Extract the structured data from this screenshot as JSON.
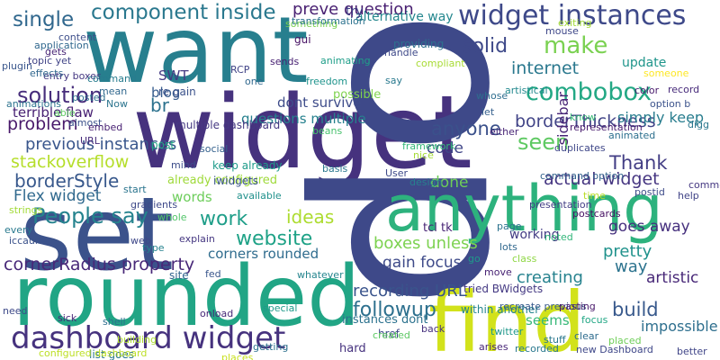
{
  "colors": {
    "background": "#ffffff",
    "palette": [
      "#440154",
      "#46327e",
      "#365c8d",
      "#277f8e",
      "#1fa187",
      "#4ac16d",
      "#a0da39",
      "#d2e21b"
    ]
  },
  "words": [
    {
      "text": "want",
      "color": "#277f8e"
    },
    {
      "text": "widget",
      "color": "#46327e"
    },
    {
      "text": "op",
      "color": "#3e4989"
    },
    {
      "text": "set",
      "color": "#3b528b"
    },
    {
      "text": "rounded",
      "color": "#21a585"
    },
    {
      "text": "anything",
      "color": "#2db27d"
    },
    {
      "text": "find",
      "color": "#d2e21b"
    },
    {
      "text": "widget instances",
      "color": "#3e4989"
    },
    {
      "text": "dashboard widget",
      "color": "#46327e"
    },
    {
      "text": "component inside",
      "color": "#2a788e"
    },
    {
      "text": "single",
      "color": "#31688e"
    },
    {
      "text": "make",
      "color": "#7ad151"
    },
    {
      "text": "solution",
      "color": "#472d7b"
    },
    {
      "text": "combobox",
      "color": "#22a884"
    },
    {
      "text": "problem",
      "color": "#48186a"
    },
    {
      "text": "internet",
      "color": "#2a788e"
    },
    {
      "text": "borderThickness",
      "color": "#414487"
    },
    {
      "text": "solid",
      "color": "#3e4989"
    },
    {
      "text": "seen",
      "color": "#5ec962"
    },
    {
      "text": "Thank",
      "color": "#433e85"
    },
    {
      "text": "actual widget",
      "color": "#453581"
    },
    {
      "text": "stackoverflow",
      "color": "#b5de2b"
    },
    {
      "text": "borderStyle",
      "color": "#38588c"
    },
    {
      "text": "Flex widget",
      "color": "#30698e"
    },
    {
      "text": "People say",
      "color": "#25838e"
    },
    {
      "text": "cornerRadius property",
      "color": "#482878"
    },
    {
      "text": "blog",
      "color": "#365c8d"
    },
    {
      "text": "SWT",
      "color": "#443a83"
    },
    {
      "text": "br",
      "color": "#2c728e"
    },
    {
      "text": "terrible flaw",
      "color": "#482173"
    },
    {
      "text": "previous instances",
      "color": "#39568c"
    },
    {
      "text": "re gain",
      "color": "#3b528b"
    },
    {
      "text": "already configured",
      "color": "#9fda3a"
    },
    {
      "text": "words",
      "color": "#6ccd5a"
    },
    {
      "text": "work",
      "color": "#1f9e89"
    },
    {
      "text": "website",
      "color": "#1fa287"
    },
    {
      "text": "ideas",
      "color": "#addc30"
    },
    {
      "text": "corners rounded",
      "color": "#2f6c8e"
    },
    {
      "text": "recording URL",
      "color": "#3a548c"
    },
    {
      "text": "followup",
      "color": "#2d708e"
    },
    {
      "text": "hard",
      "color": "#46327e"
    },
    {
      "text": "working",
      "color": "#433d84"
    },
    {
      "text": "creating",
      "color": "#26828e"
    },
    {
      "text": "build",
      "color": "#38598c"
    },
    {
      "text": "impossible",
      "color": "#2e6f8e"
    },
    {
      "text": "pretty",
      "color": "#20928c"
    },
    {
      "text": "seems",
      "color": "#37b878"
    },
    {
      "text": "anyone",
      "color": "#3b518b"
    },
    {
      "text": "code",
      "color": "#404688"
    },
    {
      "text": "done",
      "color": "#6ece58"
    },
    {
      "text": "goes away",
      "color": "#46307e"
    },
    {
      "text": "way",
      "color": "#2c738e"
    },
    {
      "text": "artistic",
      "color": "#482878"
    },
    {
      "text": "update",
      "color": "#1f958b"
    },
    {
      "text": "simply keep",
      "color": "#287d8e"
    },
    {
      "text": "sidebar",
      "color": "#482576"
    },
    {
      "text": "possible",
      "color": "#7fd34e"
    },
    {
      "text": "dont survive",
      "color": "#3e4c8a"
    },
    {
      "text": "questions multiple",
      "color": "#26818e"
    },
    {
      "text": "multiple dashboard",
      "color": "#453882"
    },
    {
      "text": "post",
      "color": "#22a785"
    },
    {
      "text": "site",
      "color": "#32658e"
    },
    {
      "text": "iwidgets",
      "color": "#3a538b"
    },
    {
      "text": "keep already",
      "color": "#1e9b8a"
    },
    {
      "text": "list goes",
      "color": "#2a768e"
    },
    {
      "text": "configured dashboard",
      "color": "#bddf26"
    },
    {
      "text": "preve question",
      "color": "#481f71"
    },
    {
      "text": "alternative way",
      "color": "#24878e"
    },
    {
      "text": "gui",
      "color": "#471164"
    },
    {
      "text": "try",
      "color": "#414287"
    },
    {
      "text": "application",
      "color": "#31688e"
    },
    {
      "text": "topic yet",
      "color": "#414487"
    },
    {
      "text": "entry boxes",
      "color": "#453882"
    },
    {
      "text": "href",
      "color": "#3f4788"
    },
    {
      "text": "instances dont",
      "color": "#2c728e"
    },
    {
      "text": "tcl tk",
      "color": "#482475"
    },
    {
      "text": "boxes unless",
      "color": "#7cd250"
    },
    {
      "text": "gain focus",
      "color": "#3e4a89"
    },
    {
      "text": "tried BWidgets",
      "color": "#443983"
    },
    {
      "text": "within another",
      "color": "#25858e"
    },
    {
      "text": "recreate previous",
      "color": "#38598c"
    },
    {
      "text": "new Dashboard",
      "color": "#3f4889"
    },
    {
      "text": "command option",
      "color": "#33638d"
    },
    {
      "text": "color",
      "color": "#481a6c"
    },
    {
      "text": "someone",
      "color": "#fde725"
    },
    {
      "text": "exiting",
      "color": "#a2da37"
    },
    {
      "text": "mouse",
      "color": "#3f4889"
    },
    {
      "text": "animated",
      "color": "#2d708e"
    },
    {
      "text": "option b",
      "color": "#3b528b"
    },
    {
      "text": "record",
      "color": "#472a7a"
    },
    {
      "text": "say",
      "color": "#29798e"
    },
    {
      "text": "compliant",
      "color": "#a8db34"
    },
    {
      "text": "handle",
      "color": "#3e4989"
    },
    {
      "text": "providing",
      "color": "#2d708e"
    },
    {
      "text": "something",
      "color": "#7ad151"
    },
    {
      "text": "RCP",
      "color": "#414487"
    },
    {
      "text": "sends",
      "color": "#482173"
    },
    {
      "text": "one",
      "color": "#31688e"
    },
    {
      "text": "animating",
      "color": "#1f9e89"
    },
    {
      "text": "freedom",
      "color": "#1f948c"
    },
    {
      "text": "transformation",
      "color": "#2c728e"
    },
    {
      "text": "beans",
      "color": "#48c16e"
    },
    {
      "text": "basis",
      "color": "#2a778e"
    },
    {
      "text": "social",
      "color": "#34618d"
    },
    {
      "text": "mind",
      "color": "#3d4d8a"
    },
    {
      "text": "available",
      "color": "#21918c"
    },
    {
      "text": "whole",
      "color": "#52c569"
    },
    {
      "text": "explain",
      "color": "#453781"
    },
    {
      "text": "fed",
      "color": "#39568c"
    },
    {
      "text": "whatever",
      "color": "#25858e"
    },
    {
      "text": "onload",
      "color": "#482979"
    },
    {
      "text": "getting",
      "color": "#2d718e"
    },
    {
      "text": "places",
      "color": "#c8e020"
    },
    {
      "text": "special",
      "color": "#1f9a8a"
    },
    {
      "text": "created",
      "color": "#5cc863"
    },
    {
      "text": "framework",
      "color": "#35b779"
    },
    {
      "text": "nice",
      "color": "#a5db36"
    },
    {
      "text": "User",
      "color": "#3e4a89"
    },
    {
      "text": "design",
      "color": "#27808e"
    },
    {
      "text": "either",
      "color": "#482576"
    },
    {
      "text": "let",
      "color": "#35608d"
    },
    {
      "text": "whose",
      "color": "#2e6e8e"
    },
    {
      "text": "artistical",
      "color": "#23898e"
    },
    {
      "text": "know",
      "color": "#3aba76"
    },
    {
      "text": "representation",
      "color": "#481c6e"
    },
    {
      "text": "duplicates",
      "color": "#3f4788"
    },
    {
      "text": "postid",
      "color": "#3e4c8a"
    },
    {
      "text": "help",
      "color": "#414487"
    },
    {
      "text": "common",
      "color": "#453882"
    },
    {
      "text": "digg",
      "color": "#2a768e"
    },
    {
      "text": "time",
      "color": "#bade28"
    },
    {
      "text": "presentation",
      "color": "#433e85"
    },
    {
      "text": "postcards",
      "color": "#471063"
    },
    {
      "text": "noted",
      "color": "#32b67a"
    },
    {
      "text": "page",
      "color": "#2c728e"
    },
    {
      "text": "pasting",
      "color": "#48186a"
    },
    {
      "text": "focus",
      "color": "#22a785"
    },
    {
      "text": "clear",
      "color": "#2f6c8e"
    },
    {
      "text": "stuff",
      "color": "#2a788e"
    },
    {
      "text": "placed",
      "color": "#6ece58"
    },
    {
      "text": "better",
      "color": "#404588"
    },
    {
      "text": "go",
      "color": "#1f9a8a"
    },
    {
      "text": "move",
      "color": "#482374"
    },
    {
      "text": "lots",
      "color": "#31688e"
    },
    {
      "text": "class",
      "color": "#8fd744"
    },
    {
      "text": "back",
      "color": "#46307e"
    },
    {
      "text": "twitter",
      "color": "#1f978b"
    },
    {
      "text": "recorded",
      "color": "#2a788e"
    },
    {
      "text": "arises",
      "color": "#482677"
    },
    {
      "text": "start",
      "color": "#2b758e"
    },
    {
      "text": "gradients",
      "color": "#3e4989"
    },
    {
      "text": "web",
      "color": "#3f4889"
    },
    {
      "text": "type",
      "color": "#26828e"
    },
    {
      "text": "shell",
      "color": "#2e6e8e"
    },
    {
      "text": "building",
      "color": "#addc30"
    },
    {
      "text": "strings",
      "color": "#a2da37"
    },
    {
      "text": "every",
      "color": "#29798e"
    },
    {
      "text": "iccaune",
      "color": "#3b528b"
    },
    {
      "text": "need",
      "color": "#3e4a89"
    },
    {
      "text": "sick",
      "color": "#482878"
    },
    {
      "text": "mean",
      "color": "#31688e"
    },
    {
      "text": "command",
      "color": "#287c8e"
    },
    {
      "text": "Now",
      "color": "#2b748e"
    },
    {
      "text": "posted",
      "color": "#2e6f8e"
    },
    {
      "text": "URL",
      "color": "#472c7a"
    },
    {
      "text": "plugin",
      "color": "#39568c"
    },
    {
      "text": "effects",
      "color": "#31678e"
    },
    {
      "text": "gets",
      "color": "#482576"
    },
    {
      "text": "content",
      "color": "#3d4e8a"
    },
    {
      "text": "animations",
      "color": "#2c738e"
    },
    {
      "text": "able",
      "color": "#5ec962"
    },
    {
      "text": "almost",
      "color": "#3b518b"
    },
    {
      "text": "embed",
      "color": "#482173"
    }
  ]
}
